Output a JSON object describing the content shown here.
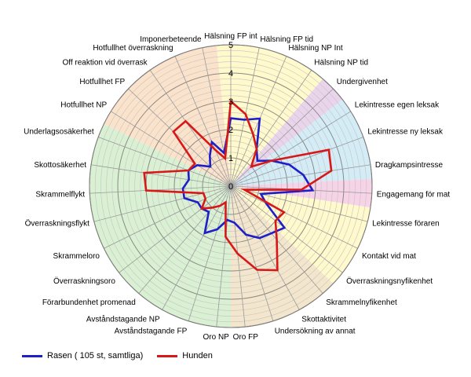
{
  "chart_data": {
    "type": "radar",
    "rlim": [
      0,
      5
    ],
    "ticks": [
      "0",
      "1",
      "2",
      "3",
      "4",
      "5"
    ],
    "categories": [
      "Hälsning FP int",
      "Hälsning FP tid",
      "Hälsning NP Int",
      "Hälsning NP tid",
      "Undergivenhet",
      "Lekintresse egen leksak",
      "Lekintresse ny leksak",
      "Dragkampsintresse",
      "Engagemang för mat",
      "Lekintresse föraren",
      "Kontakt vid mat",
      "Överraskningsnyfikenhet",
      "Skrammelnyfikenhet",
      "Skottaktivitet",
      "Undersökning av annat",
      "Oro FP",
      "Oro NP",
      "Avståndstagande FP",
      "Avståndstagande NP",
      "Förarbundenhet promenad",
      "Överraskningsoro",
      "Skrammeloro",
      "Överraskningsflykt",
      "Skrammelflykt",
      "Skottosäkerhet",
      "Underlagsosäkerhet",
      "Hotfullhet NP",
      "Hotfullhet FP",
      "Off reaktion vid överrask",
      "Hotfullhet överraskning",
      "Imponerbeteende"
    ],
    "series": [
      {
        "name": "Rasen ( 105 st, samtliga)",
        "color": "#1f1fc8",
        "values": [
          2.4,
          2.4,
          2.6,
          1.6,
          1.3,
          1.7,
          2.2,
          2.6,
          2.9,
          1.1,
          1.4,
          2.4,
          2.2,
          2.1,
          1.8,
          1.3,
          1.2,
          1.6,
          1.9,
          1.2,
          1.3,
          1.3,
          1.7,
          1.7,
          1.5,
          1.6,
          1.4,
          1.0,
          1.3,
          1.7,
          1.2
        ]
      },
      {
        "name": "Hunden",
        "color": "#d81818",
        "values": [
          3.0,
          2.6,
          2.0,
          1.6,
          1.0,
          1.7,
          3.7,
          3.6,
          2.5,
          0.5,
          2.1,
          2.0,
          2.5,
          3.4,
          3.1,
          2.4,
          1.8,
          0.6,
          0.8,
          1.0,
          1.3,
          1.0,
          1.0,
          3.0,
          3.1,
          1.6,
          1.5,
          2.8,
          2.8,
          1.4,
          1.0
        ]
      }
    ],
    "sectors": [
      {
        "from": 0,
        "to": 4,
        "color": "#fff9cc"
      },
      {
        "from": 4,
        "to": 5,
        "color": "#e9d4ec"
      },
      {
        "from": 5,
        "to": 8,
        "color": "#d3ecf6"
      },
      {
        "from": 8,
        "to": 9,
        "color": "#f6d3e6"
      },
      {
        "from": 9,
        "to": 12,
        "color": "#fff9cc"
      },
      {
        "from": 12,
        "to": 16,
        "color": "#f3e6cc"
      },
      {
        "from": 16,
        "to": 26,
        "color": "#d9f0d3"
      },
      {
        "from": 26,
        "to": 31,
        "color": "#fbe3cb"
      }
    ],
    "grid": true
  }
}
